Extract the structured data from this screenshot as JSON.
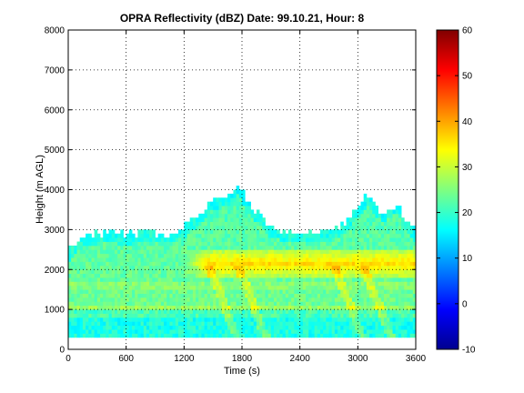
{
  "chart_data": {
    "type": "heatmap",
    "title": "OPRA Reflectivity (dBZ)  Date: 99.10.21, Hour: 8",
    "xlabel": "Time (s)",
    "ylabel": "Height (m AGL)",
    "xlim": [
      0,
      3600
    ],
    "ylim": [
      0,
      8000
    ],
    "x_ticks": [
      "0",
      "600",
      "1200",
      "1800",
      "2400",
      "3000",
      "3600"
    ],
    "y_ticks": [
      "0",
      "1000",
      "2000",
      "3000",
      "4000",
      "5000",
      "6000",
      "7000",
      "8000"
    ],
    "grid": true,
    "colormap": "jet",
    "colorbar": {
      "clim": [
        -10,
        60
      ],
      "ticks": [
        "-10",
        "0",
        "10",
        "20",
        "30",
        "40",
        "50",
        "60"
      ]
    },
    "features": {
      "base_echo_height_m": 300,
      "echo_top_profile": [
        [
          0,
          2500
        ],
        [
          100,
          2800
        ],
        [
          200,
          2900
        ],
        [
          400,
          3000
        ],
        [
          600,
          2900
        ],
        [
          800,
          3000
        ],
        [
          1000,
          2950
        ],
        [
          1200,
          3100
        ],
        [
          1350,
          3400
        ],
        [
          1500,
          3800
        ],
        [
          1650,
          3900
        ],
        [
          1750,
          4200
        ],
        [
          1850,
          3800
        ],
        [
          1950,
          3500
        ],
        [
          2100,
          3100
        ],
        [
          2300,
          3000
        ],
        [
          2700,
          3000
        ],
        [
          2850,
          3200
        ],
        [
          3000,
          3600
        ],
        [
          3100,
          3900
        ],
        [
          3250,
          3500
        ],
        [
          3400,
          3700
        ],
        [
          3500,
          3300
        ],
        [
          3600,
          3000
        ]
      ],
      "bright_band": {
        "height_m": 2150,
        "x_range": [
          1300,
          3600
        ],
        "peak_dbz": 36
      },
      "background_dbz_low": 18,
      "background_dbz_mid": 24,
      "fall_streaks": [
        {
          "x_start": 1450,
          "x_end": 1750
        },
        {
          "x_start": 1750,
          "x_end": 2050
        },
        {
          "x_start": 2750,
          "x_end": 3050
        },
        {
          "x_start": 3050,
          "x_end": 3350
        }
      ]
    }
  }
}
